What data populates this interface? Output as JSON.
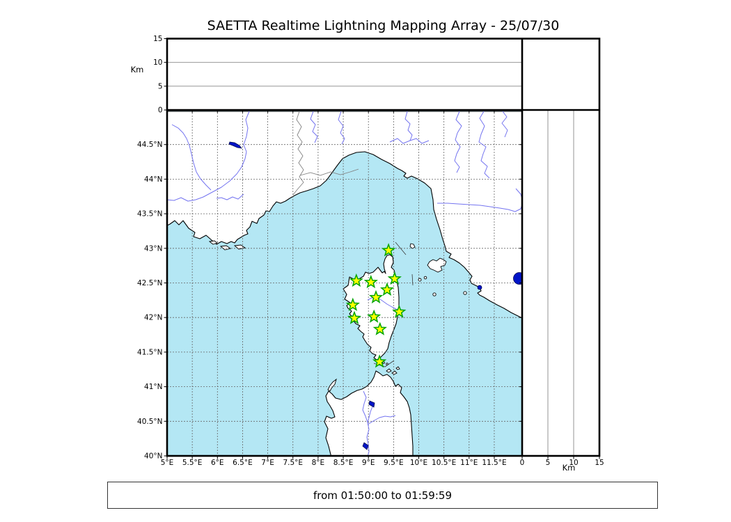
{
  "title": "SAETTA Realtime Lightning Mapping Array - 25/07/30",
  "footer": {
    "text": "from 01:50:00 to 01:59:59"
  },
  "axes": {
    "top_panel": {
      "label": "Km",
      "ticks": [
        {
          "v": 0,
          "label": "0"
        },
        {
          "v": 5,
          "label": "5"
        },
        {
          "v": 10,
          "label": "10"
        },
        {
          "v": 15,
          "label": "15"
        }
      ]
    },
    "right_panel": {
      "label": "Km",
      "ticks": [
        {
          "v": 0,
          "label": "0"
        },
        {
          "v": 5,
          "label": "5"
        },
        {
          "v": 10,
          "label": "10"
        },
        {
          "v": 15,
          "label": "15"
        }
      ]
    },
    "map": {
      "lon_ticks": [
        {
          "v": 5,
          "label": "5°E"
        },
        {
          "v": 5.5,
          "label": "5.5°E"
        },
        {
          "v": 6,
          "label": "6°E"
        },
        {
          "v": 6.5,
          "label": "6.5°E"
        },
        {
          "v": 7,
          "label": "7°E"
        },
        {
          "v": 7.5,
          "label": "7.5°E"
        },
        {
          "v": 8,
          "label": "8°E"
        },
        {
          "v": 8.5,
          "label": "8.5°E"
        },
        {
          "v": 9,
          "label": "9°E"
        },
        {
          "v": 9.5,
          "label": "9.5°E"
        },
        {
          "v": 10,
          "label": "10°E"
        },
        {
          "v": 10.5,
          "label": "10.5°E"
        },
        {
          "v": 11,
          "label": "11°E"
        },
        {
          "v": 11.5,
          "label": "11.5°E"
        }
      ],
      "lat_ticks": [
        {
          "v": 40,
          "label": "40°N"
        },
        {
          "v": 40.5,
          "label": "40.5°N"
        },
        {
          "v": 41,
          "label": "41°N"
        },
        {
          "v": 41.5,
          "label": "41.5°N"
        },
        {
          "v": 42,
          "label": "42°N"
        },
        {
          "v": 42.5,
          "label": "42.5°N"
        },
        {
          "v": 43,
          "label": "43°N"
        },
        {
          "v": 43.5,
          "label": "43.5°N"
        },
        {
          "v": 44,
          "label": "44°N"
        },
        {
          "v": 44.5,
          "label": "44.5°N"
        }
      ]
    }
  },
  "style": {
    "sea": "#b4e7f4",
    "land": "#ffffff",
    "coast": "#000000",
    "river": "#7474f0",
    "lake": "#0014c8",
    "grid": "#666666",
    "star_fill": "#ffff00",
    "star_edge": "#00a400"
  },
  "chart_data": {
    "type": "scatter",
    "title": "SAETTA Realtime Lightning Mapping Array - 25/07/30",
    "time_window": "from 01:50:00 to 01:59:59",
    "panels": {
      "map": {
        "xlim": [
          5,
          12.05
        ],
        "ylim": [
          40,
          45
        ],
        "xticks": [
          5,
          5.5,
          6,
          6.5,
          7,
          7.5,
          8,
          8.5,
          9,
          9.5,
          10,
          10.5,
          11,
          11.5
        ],
        "yticks": [
          40,
          40.5,
          41,
          41.5,
          42,
          42.5,
          43,
          43.5,
          44,
          44.5
        ],
        "grid": true
      },
      "altitude_top": {
        "ylabel": "Km",
        "ylim": [
          0,
          15
        ],
        "yticks": [
          0,
          5,
          10,
          15
        ],
        "gridlines": [
          5,
          10
        ],
        "series": []
      },
      "altitude_right": {
        "xlabel": "Km",
        "xlim": [
          0,
          15
        ],
        "xticks": [
          0,
          5,
          10,
          15
        ],
        "gridlines": [
          5,
          10
        ],
        "series": []
      }
    },
    "series": [
      {
        "name": "SAETTA stations",
        "marker": "star",
        "points_lon_lat": [
          [
            9.4,
            42.97
          ],
          [
            8.76,
            42.53
          ],
          [
            9.05,
            42.51
          ],
          [
            9.52,
            42.56
          ],
          [
            9.37,
            42.4
          ],
          [
            9.15,
            42.29
          ],
          [
            8.69,
            42.18
          ],
          [
            9.61,
            42.08
          ],
          [
            8.72,
            41.99
          ],
          [
            9.11,
            42.01
          ],
          [
            9.23,
            41.83
          ],
          [
            9.22,
            41.36
          ]
        ]
      }
    ],
    "lightning_points": []
  }
}
